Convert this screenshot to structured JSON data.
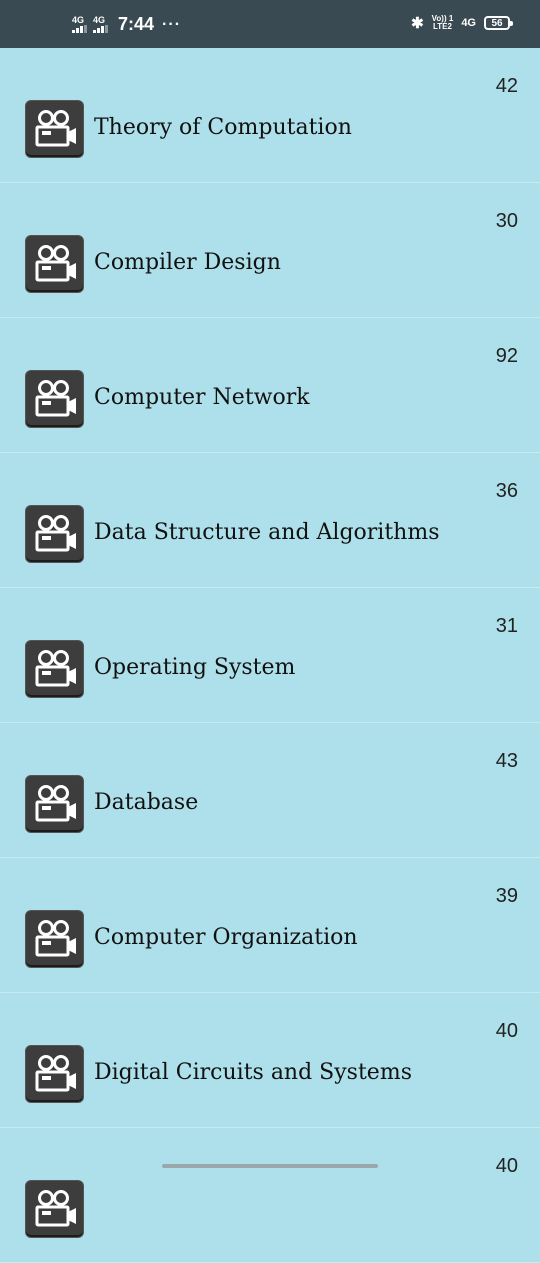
{
  "status_bar": {
    "sim1": "4G",
    "sim2": "4G",
    "time": "7:44",
    "more": "···",
    "bluetooth": "✱",
    "volte_top": "Vo)) 1",
    "volte_bottom": "LTE2",
    "network": "4G",
    "battery": "56"
  },
  "icons": {
    "item_icon": "video-camera-icon"
  },
  "items": [
    {
      "title": "Theory of Computation",
      "count": "42"
    },
    {
      "title": "Compiler Design",
      "count": "30"
    },
    {
      "title": "Computer Network",
      "count": "92"
    },
    {
      "title": "Data Structure and Algorithms",
      "count": "36"
    },
    {
      "title": "Operating System",
      "count": "31"
    },
    {
      "title": "Database",
      "count": "43"
    },
    {
      "title": "Computer Organization",
      "count": "39"
    },
    {
      "title": "Digital Circuits and Systems",
      "count": "40"
    },
    {
      "title": "",
      "count": "40"
    }
  ],
  "colors": {
    "background": "#ade0ea",
    "status_bar": "#3a4a52",
    "icon_tile": "#3d3d3d"
  }
}
